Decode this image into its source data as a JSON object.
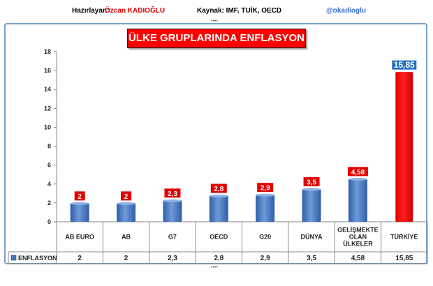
{
  "header": {
    "author_label": "Hazırlayan:",
    "author_name": "Özcan KADIOĞLU",
    "source": "Kaynak: IMF, TUİK, OECD",
    "handle": "@okadioglu"
  },
  "colors": {
    "bar_blue": "#4a78bd",
    "bar_red": "#ff0000",
    "label_red": "#e00000",
    "label_blue": "#1f6fbf",
    "author_red": "#e00000",
    "handle_blue": "#3a6fd0"
  },
  "chart_data": {
    "type": "bar",
    "title": "ÜLKE GRUPLARINDA ENFLASYON",
    "categories": [
      "AB EURO",
      "AB",
      "G7",
      "OECD",
      "G20",
      "DÜNYA",
      "GELİŞMEKTE OLAN ÜLKELER",
      "TÜRKİYE"
    ],
    "category_lines": [
      [
        "AB EURO"
      ],
      [
        "AB"
      ],
      [
        "G7"
      ],
      [
        "OECD"
      ],
      [
        "G20"
      ],
      [
        "DÜNYA"
      ],
      [
        "GELİŞMEKTE",
        "OLAN",
        "ÜLKELER"
      ],
      [
        "TÜRKİYE"
      ]
    ],
    "series": [
      {
        "name": "ENFLASYON",
        "values": [
          2,
          2,
          2.3,
          2.8,
          2.9,
          3.5,
          4.58,
          15.85
        ]
      }
    ],
    "value_labels": [
      "2",
      "2",
      "2,3",
      "2,8",
      "2,9",
      "3,5",
      "4,58",
      "15,85"
    ],
    "highlight_index": 7,
    "ylim": [
      0,
      18
    ],
    "yticks": [
      0,
      2,
      4,
      6,
      8,
      10,
      12,
      14,
      16,
      18
    ],
    "grid": false,
    "legend": "data-table"
  }
}
